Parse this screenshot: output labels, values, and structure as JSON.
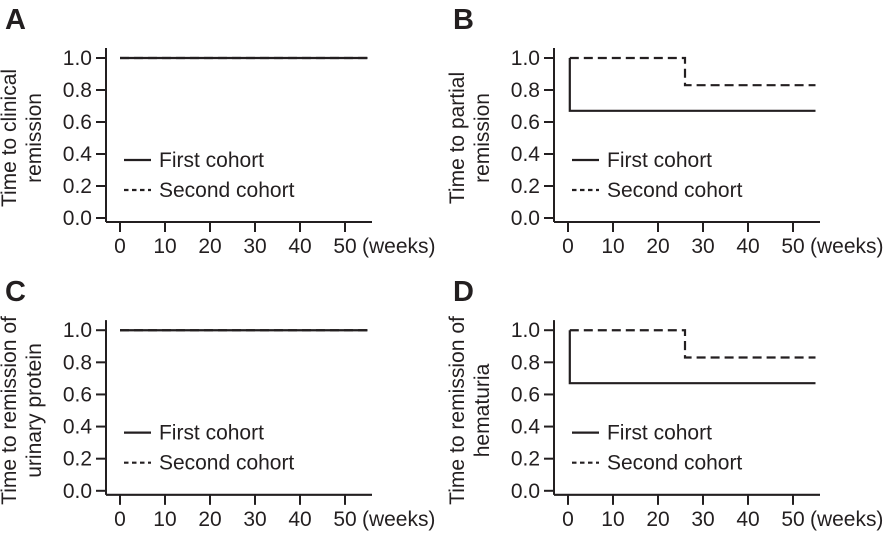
{
  "figure": {
    "background": "#ffffff",
    "line_color": "#231f20",
    "text_color": "#231f20"
  },
  "axis": {
    "x_ticks": [
      {
        "value": 0,
        "label": "0"
      },
      {
        "value": 10,
        "label": "10"
      },
      {
        "value": 20,
        "label": "20"
      },
      {
        "value": 30,
        "label": "30"
      },
      {
        "value": 40,
        "label": "40"
      },
      {
        "value": 50,
        "label": "50"
      }
    ],
    "x_unit_label": "(weeks)",
    "y_ticks": [
      {
        "value": 1.0,
        "label": "1.0"
      },
      {
        "value": 0.8,
        "label": "0.8"
      },
      {
        "value": 0.6,
        "label": "0.6"
      },
      {
        "value": 0.4,
        "label": "0.4"
      },
      {
        "value": 0.2,
        "label": "0.2"
      },
      {
        "value": 0.0,
        "label": "0.0"
      }
    ]
  },
  "legend": {
    "first_label": "First cohort",
    "second_label": "Second cohort"
  },
  "chart_data": [
    {
      "type": "line",
      "subtype": "kaplan-meier-step",
      "panel_label": "A",
      "ylabel": "Time to clinical remission",
      "ylabel_lines": [
        "Time to clinical",
        "remission"
      ],
      "xlabel": "(weeks)",
      "x_ticks": [
        0,
        10,
        20,
        30,
        40,
        50
      ],
      "y_ticks": [
        0.0,
        0.2,
        0.4,
        0.6,
        0.8,
        1.0
      ],
      "xlim": [
        0,
        55
      ],
      "ylim": [
        0.0,
        1.0
      ],
      "legend": [
        "First cohort",
        "Second cohort"
      ],
      "legend_position": "inside lower-left",
      "series": [
        {
          "name": "Second cohort",
          "style": "dashed",
          "points": [
            [
              0,
              1.0
            ],
            [
              55,
              1.0
            ]
          ]
        },
        {
          "name": "First cohort",
          "style": "solid",
          "points": [
            [
              0,
              1.0
            ],
            [
              55,
              1.0
            ]
          ]
        }
      ]
    },
    {
      "type": "line",
      "subtype": "kaplan-meier-step",
      "panel_label": "B",
      "ylabel": "Time to partial remission",
      "ylabel_lines": [
        "Time to partial",
        "remission"
      ],
      "xlabel": "(weeks)",
      "x_ticks": [
        0,
        10,
        20,
        30,
        40,
        50
      ],
      "y_ticks": [
        0.0,
        0.2,
        0.4,
        0.6,
        0.8,
        1.0
      ],
      "xlim": [
        0,
        55
      ],
      "ylim": [
        0.0,
        1.0
      ],
      "legend": [
        "First cohort",
        "Second cohort"
      ],
      "legend_position": "inside lower-left",
      "series": [
        {
          "name": "Second cohort",
          "style": "dashed",
          "points": [
            [
              0.4,
              1.0
            ],
            [
              26,
              1.0
            ],
            [
              26,
              0.83
            ],
            [
              55,
              0.83
            ]
          ]
        },
        {
          "name": "First cohort",
          "style": "solid",
          "points": [
            [
              0.4,
              1.0
            ],
            [
              0.4,
              0.67
            ],
            [
              55,
              0.67
            ]
          ]
        }
      ]
    },
    {
      "type": "line",
      "subtype": "kaplan-meier-step",
      "panel_label": "C",
      "ylabel": "Time to remission of urinary protein",
      "ylabel_lines": [
        "Time to remission of",
        "urinary protein"
      ],
      "xlabel": "(weeks)",
      "x_ticks": [
        0,
        10,
        20,
        30,
        40,
        50
      ],
      "y_ticks": [
        0.0,
        0.2,
        0.4,
        0.6,
        0.8,
        1.0
      ],
      "xlim": [
        0,
        55
      ],
      "ylim": [
        0.0,
        1.0
      ],
      "legend": [
        "First cohort",
        "Second cohort"
      ],
      "legend_position": "inside lower-left",
      "series": [
        {
          "name": "Second cohort",
          "style": "dashed",
          "points": [
            [
              0,
              1.0
            ],
            [
              55,
              1.0
            ]
          ]
        },
        {
          "name": "First cohort",
          "style": "solid",
          "points": [
            [
              0,
              1.0
            ],
            [
              55,
              1.0
            ]
          ]
        }
      ]
    },
    {
      "type": "line",
      "subtype": "kaplan-meier-step",
      "panel_label": "D",
      "ylabel": "Time to remission of hematuria",
      "ylabel_lines": [
        "Time to remission of",
        "hematuria"
      ],
      "xlabel": "(weeks)",
      "x_ticks": [
        0,
        10,
        20,
        30,
        40,
        50
      ],
      "y_ticks": [
        0.0,
        0.2,
        0.4,
        0.6,
        0.8,
        1.0
      ],
      "xlim": [
        0,
        55
      ],
      "ylim": [
        0.0,
        1.0
      ],
      "legend": [
        "First cohort",
        "Second cohort"
      ],
      "legend_position": "inside lower-left",
      "series": [
        {
          "name": "Second cohort",
          "style": "dashed",
          "points": [
            [
              0.4,
              1.0
            ],
            [
              26,
              1.0
            ],
            [
              26,
              0.83
            ],
            [
              55,
              0.83
            ]
          ]
        },
        {
          "name": "First cohort",
          "style": "solid",
          "points": [
            [
              0.4,
              1.0
            ],
            [
              0.4,
              0.67
            ],
            [
              55,
              0.67
            ]
          ]
        }
      ]
    }
  ]
}
